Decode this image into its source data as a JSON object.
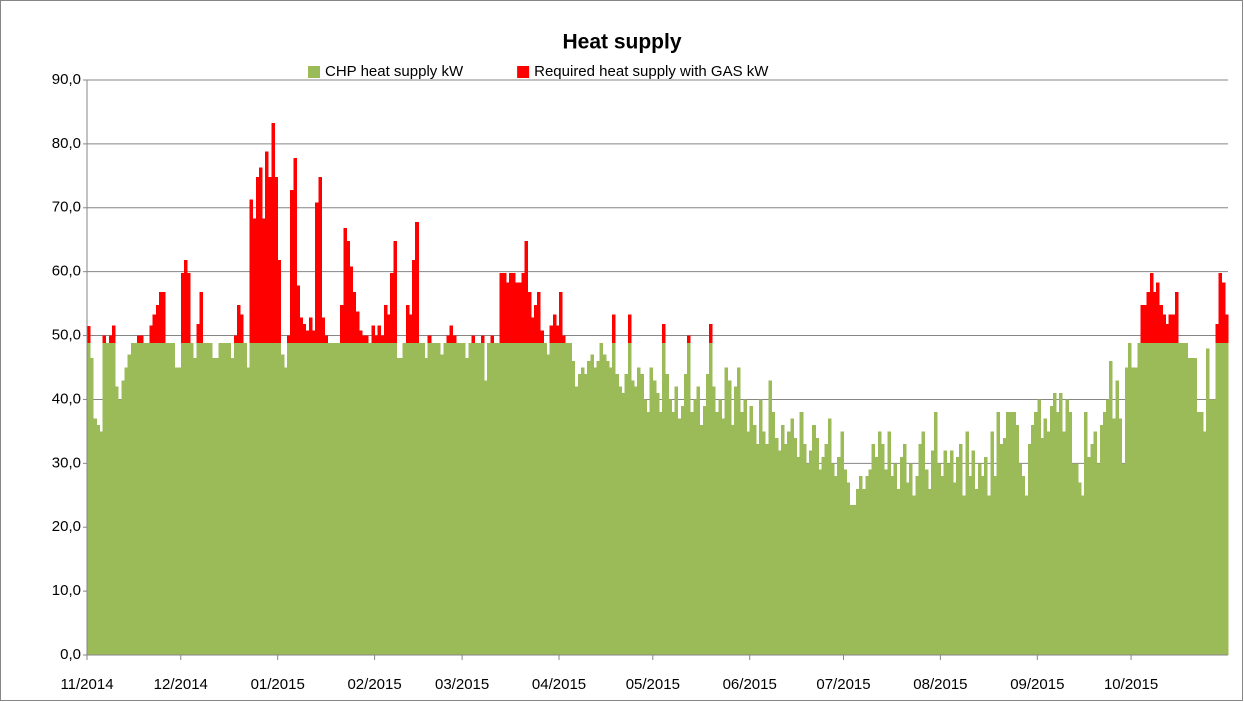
{
  "chart_data": {
    "type": "stacked_bar",
    "title": "Heat supply",
    "legend": "top",
    "categories": [
      "11/2014",
      null,
      null,
      null,
      null,
      null,
      null,
      null,
      null,
      null,
      null,
      null,
      null,
      null,
      null,
      null,
      null,
      null,
      null,
      null,
      null,
      null,
      null,
      null,
      null,
      null,
      null,
      null,
      null,
      null,
      "12/2014",
      null,
      null,
      null,
      null,
      null,
      null,
      null,
      null,
      null,
      null,
      null,
      null,
      null,
      null,
      null,
      null,
      null,
      null,
      null,
      null,
      null,
      null,
      null,
      null,
      null,
      null,
      null,
      null,
      null,
      null,
      "01/2015",
      null,
      null,
      null,
      null,
      null,
      null,
      null,
      null,
      null,
      null,
      null,
      null,
      null,
      null,
      null,
      null,
      null,
      null,
      null,
      null,
      null,
      null,
      null,
      null,
      null,
      null,
      null,
      null,
      null,
      null,
      "02/2015",
      null,
      null,
      null,
      null,
      null,
      null,
      null,
      null,
      null,
      null,
      null,
      null,
      null,
      null,
      null,
      null,
      null,
      null,
      null,
      null,
      null,
      null,
      null,
      null,
      null,
      null,
      null,
      "03/2015",
      null,
      null,
      null,
      null,
      null,
      null,
      null,
      null,
      null,
      null,
      null,
      null,
      null,
      null,
      null,
      null,
      null,
      null,
      null,
      null,
      null,
      null,
      null,
      null,
      null,
      null,
      null,
      null,
      null,
      null,
      "04/2015",
      null,
      null,
      null,
      null,
      null,
      null,
      null,
      null,
      null,
      null,
      null,
      null,
      null,
      null,
      null,
      null,
      null,
      null,
      null,
      null,
      null,
      null,
      null,
      null,
      null,
      null,
      null,
      null,
      null,
      "05/2015",
      null,
      null,
      null,
      null,
      null,
      null,
      null,
      null,
      null,
      null,
      null,
      null,
      null,
      null,
      null,
      null,
      null,
      null,
      null,
      null,
      null,
      null,
      null,
      null,
      null,
      null,
      null,
      null,
      null,
      null,
      "06/2015",
      null,
      null,
      null,
      null,
      null,
      null,
      null,
      null,
      null,
      null,
      null,
      null,
      null,
      null,
      null,
      null,
      null,
      null,
      null,
      null,
      null,
      null,
      null,
      null,
      null,
      null,
      null,
      null,
      null,
      "07/2015",
      null,
      null,
      null,
      null,
      null,
      null,
      null,
      null,
      null,
      null,
      null,
      null,
      null,
      null,
      null,
      null,
      null,
      null,
      null,
      null,
      null,
      null,
      null,
      null,
      null,
      null,
      null,
      null,
      null,
      null,
      "08/2015",
      null,
      null,
      null,
      null,
      null,
      null,
      null,
      null,
      null,
      null,
      null,
      null,
      null,
      null,
      null,
      null,
      null,
      null,
      null,
      null,
      null,
      null,
      null,
      null,
      null,
      null,
      null,
      null,
      null,
      null,
      "09/2015",
      null,
      null,
      null,
      null,
      null,
      null,
      null,
      null,
      null,
      null,
      null,
      null,
      null,
      null,
      null,
      null,
      null,
      null,
      null,
      null,
      null,
      null,
      null,
      null,
      null,
      null,
      null,
      null,
      null,
      "10/2015",
      null,
      null,
      null,
      null,
      null,
      null,
      null,
      null,
      null,
      null,
      null,
      null,
      null,
      null,
      null,
      null,
      null,
      null,
      null,
      null,
      null,
      null,
      null,
      null,
      null,
      null,
      null,
      null,
      null,
      null
    ],
    "series": [
      {
        "name": "CHP heat supply kW",
        "color": "#9bbb59",
        "values": [
          48.8,
          46.5,
          37,
          36,
          35,
          48.8,
          48.8,
          48.8,
          48.8,
          42,
          40,
          43,
          45,
          47,
          48.8,
          48.8,
          48.8,
          48.8,
          48.8,
          48.8,
          48.8,
          48.8,
          48.8,
          48.8,
          48.8,
          48.8,
          48.8,
          48.8,
          45,
          45,
          48.8,
          48.8,
          48.8,
          48.8,
          46.5,
          48.8,
          48.8,
          48.8,
          48.8,
          48.8,
          46.5,
          46.5,
          48.8,
          48.8,
          48.8,
          48.8,
          46.5,
          48.8,
          48.8,
          48.8,
          48.8,
          45,
          48.8,
          48.8,
          48.8,
          48.8,
          48.8,
          48.8,
          48.8,
          48.8,
          48.8,
          48.8,
          47,
          45,
          48.8,
          48.8,
          48.8,
          48.8,
          48.8,
          48.8,
          48.8,
          48.8,
          48.8,
          48.8,
          48.8,
          48.8,
          48.8,
          48.8,
          48.8,
          48.8,
          48.8,
          48.8,
          48.8,
          48.8,
          48.8,
          48.8,
          48.8,
          48.8,
          48.8,
          48.8,
          48.8,
          48.8,
          48.8,
          48.8,
          48.8,
          48.8,
          48.8,
          48.8,
          48.8,
          46.5,
          46.5,
          48.8,
          48.8,
          48.8,
          48.8,
          48.8,
          48.8,
          48.8,
          46.5,
          48.8,
          48.8,
          48.8,
          48.8,
          47,
          48.8,
          48.8,
          48.8,
          48.8,
          48.8,
          48.8,
          48.8,
          46.5,
          48.8,
          48.8,
          48.8,
          48.8,
          48.8,
          43,
          48.8,
          48.8,
          48.8,
          48.8,
          48.8,
          48.8,
          48.8,
          48.8,
          48.8,
          48.8,
          48.8,
          48.8,
          48.8,
          48.8,
          48.8,
          48.8,
          48.8,
          48.8,
          48.8,
          47,
          48.8,
          48.8,
          48.8,
          48.8,
          48.8,
          48.8,
          48.8,
          46,
          42,
          44,
          45,
          44,
          46,
          47,
          45,
          46,
          48.8,
          47,
          46,
          45,
          48.8,
          44,
          42,
          41,
          44,
          48.8,
          43,
          42,
          45,
          44,
          40,
          38,
          45,
          43,
          41,
          38,
          48.8,
          44,
          40,
          38,
          42,
          37,
          39,
          44,
          48.8,
          38,
          40,
          42,
          36,
          39,
          44,
          48.8,
          42,
          38,
          40,
          37,
          45,
          43,
          36,
          42,
          45,
          38,
          40,
          35,
          39,
          36,
          33,
          40,
          35,
          33,
          43,
          38,
          34,
          32,
          36,
          33,
          35,
          37,
          34,
          31,
          38,
          33,
          30,
          32,
          36,
          34,
          29,
          31,
          33,
          37,
          30,
          28,
          31,
          35,
          29,
          27,
          23.5,
          23.5,
          26,
          28,
          26,
          28,
          29,
          33,
          31,
          35,
          33,
          29,
          35,
          28,
          30,
          26,
          31,
          33,
          27,
          30,
          25,
          28,
          33,
          35,
          29,
          26,
          32,
          38,
          30,
          28,
          32,
          30,
          32,
          27,
          31,
          33,
          25,
          35,
          28,
          32,
          26,
          30,
          28,
          31,
          25,
          35,
          28,
          38,
          33,
          34,
          38,
          38,
          38,
          36,
          30,
          28,
          25,
          33,
          36,
          38,
          40,
          34,
          37,
          35,
          39,
          41,
          38,
          41,
          35,
          40,
          38,
          30,
          30,
          27,
          25,
          38,
          31,
          33,
          35,
          30,
          36,
          38,
          40,
          46,
          37,
          43,
          37,
          30,
          45,
          48.8,
          45,
          45,
          48.8,
          48.8,
          48.8,
          48.8,
          48.8,
          48.8,
          48.8,
          48.8,
          48.8,
          48.8,
          48.8,
          48.8,
          48.8,
          48.8,
          48.8,
          48.8,
          46.5,
          46.5,
          46.5,
          38,
          38,
          35,
          48,
          40,
          40,
          48.8,
          48.8,
          48.8,
          48.8
        ]
      },
      {
        "name": "Required heat supply with GAS kW",
        "color": "#ff0000",
        "values": [
          2.7,
          0,
          0,
          0,
          0,
          1.2,
          0,
          1.2,
          2.8,
          0,
          0,
          0,
          0,
          0,
          0,
          0,
          1.2,
          1.2,
          0,
          0,
          2.8,
          4.5,
          6,
          8,
          8,
          0,
          0,
          0,
          0,
          0,
          11,
          13,
          11,
          0,
          0,
          3,
          8,
          0,
          0,
          0,
          0,
          0,
          0,
          0,
          0,
          0,
          0,
          1.2,
          6,
          4.5,
          0,
          0,
          22.5,
          19.5,
          26,
          27.5,
          19.5,
          30,
          26,
          34.5,
          26,
          13,
          0,
          0,
          1.2,
          24,
          29,
          9,
          4,
          3,
          2,
          4,
          2,
          22,
          26,
          4,
          1.2,
          0,
          0,
          0,
          0,
          6,
          18,
          16,
          12,
          8,
          5,
          2,
          1.2,
          1.2,
          0,
          2.8,
          1.2,
          2.8,
          1.2,
          6,
          4.5,
          11,
          16,
          0,
          0,
          0,
          6,
          4.5,
          13,
          19,
          0,
          0,
          0,
          1.2,
          0,
          0,
          0,
          0,
          0,
          1.2,
          2.8,
          1.2,
          0,
          0,
          0,
          0,
          0,
          1.2,
          0,
          0,
          1.2,
          0,
          0,
          1.2,
          0,
          0,
          11,
          11,
          9.5,
          11,
          11,
          9.5,
          9.5,
          11,
          16,
          8,
          4,
          6,
          8,
          2,
          0,
          0,
          2.8,
          4.5,
          2.8,
          8,
          1.2,
          0,
          0,
          0,
          0,
          0,
          0,
          0,
          0,
          0,
          0,
          0,
          0,
          0,
          0,
          0,
          4.5,
          0,
          0,
          0,
          0,
          4.5,
          0,
          0,
          0,
          0,
          0,
          0,
          0,
          0,
          0,
          0,
          3,
          0,
          0,
          0,
          0,
          0,
          0,
          0,
          1.2,
          0,
          0,
          0,
          0,
          0,
          0,
          3,
          0,
          0,
          0,
          0,
          0,
          0,
          0,
          0,
          0,
          0,
          0,
          0,
          0,
          0,
          0,
          0,
          0,
          0,
          0,
          0,
          0,
          0,
          0,
          0,
          0,
          0,
          0,
          0,
          0,
          0,
          0,
          0,
          0,
          0,
          0,
          0,
          0,
          0,
          0,
          0,
          0,
          0,
          0,
          0,
          0,
          0,
          0,
          0,
          0,
          0,
          0,
          0,
          0,
          0,
          0,
          0,
          0,
          0,
          0,
          0,
          0,
          0,
          0,
          0,
          0,
          0,
          0,
          0,
          0,
          0,
          0,
          0,
          0,
          0,
          0,
          0,
          0,
          0,
          0,
          0,
          0,
          0,
          0,
          0,
          0,
          0,
          0,
          0,
          0,
          0,
          0,
          0,
          0,
          0,
          0,
          0,
          0,
          0,
          0,
          0,
          0,
          0,
          0,
          0,
          0,
          0,
          0,
          0,
          0,
          0,
          0,
          0,
          0,
          0,
          0,
          0,
          0,
          0,
          0,
          0,
          0,
          0,
          0,
          0,
          0,
          0,
          0,
          0,
          0,
          0,
          0,
          0,
          0,
          0,
          0,
          0,
          0,
          6,
          6,
          8,
          11,
          8,
          9.5,
          6,
          4.5,
          3,
          4.5,
          4.5,
          8,
          0,
          0,
          0,
          0,
          0,
          0,
          0,
          0,
          0,
          0,
          0,
          0,
          3,
          11,
          9.5,
          4.5
        ]
      }
    ],
    "ylim": [
      0,
      90
    ],
    "yticks": [
      {
        "value": 0,
        "label": "0,0"
      },
      {
        "value": 10,
        "label": "10,0"
      },
      {
        "value": 20,
        "label": "20,0"
      },
      {
        "value": 30,
        "label": "30,0"
      },
      {
        "value": 40,
        "label": "40,0"
      },
      {
        "value": 50,
        "label": "50,0"
      },
      {
        "value": 60,
        "label": "60,0"
      },
      {
        "value": 70,
        "label": "70,0"
      },
      {
        "value": 80,
        "label": "80,0"
      },
      {
        "value": 90,
        "label": "90,0"
      }
    ],
    "grid": true
  }
}
